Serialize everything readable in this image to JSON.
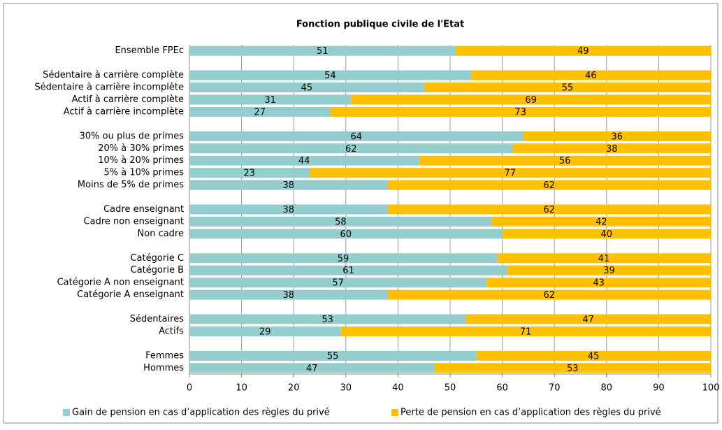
{
  "chart_data": {
    "type": "stacked_barh",
    "title": "Fonction publique civile de l'Etat",
    "categories": [
      "Ensemble FPEc",
      null,
      "Sédentaire à carrière complète",
      "Sédentaire à carrière incomplète",
      "Actif à carrière complète",
      "Actif à carrière incomplète",
      null,
      "30% ou plus de primes",
      "20% à 30% primes",
      "10% à 20% primes",
      "5% à 10% primes",
      "Moins de 5% de primes",
      null,
      "Cadre enseignant",
      "Cadre non enseignant",
      "Non cadre",
      null,
      "Catégorie C",
      "Catégorie B",
      "Catégorie A non enseignant",
      "Catégorie A enseignant",
      null,
      "Sédentaires",
      "Actifs",
      null,
      "Femmes",
      "Hommes"
    ],
    "series": [
      {
        "name": "Gain de pension en cas d’application des règles du privé",
        "color": "#93cdcd",
        "values": [
          51,
          null,
          54,
          45,
          31,
          27,
          null,
          64,
          62,
          44,
          23,
          38,
          null,
          38,
          58,
          60,
          null,
          59,
          61,
          57,
          38,
          null,
          53,
          29,
          null,
          55,
          47
        ]
      },
      {
        "name": "Perte de pension en cas d’application des règles du privé",
        "color": "#ffc000",
        "values": [
          49,
          null,
          46,
          55,
          69,
          73,
          null,
          36,
          38,
          56,
          77,
          62,
          null,
          62,
          42,
          40,
          null,
          41,
          39,
          43,
          62,
          null,
          47,
          71,
          null,
          45,
          53
        ]
      }
    ],
    "xlim": [
      0,
      100
    ],
    "xticks": [
      0,
      10,
      20,
      30,
      40,
      50,
      60,
      70,
      80,
      90,
      100
    ],
    "grid": true,
    "legend": "bottom"
  }
}
